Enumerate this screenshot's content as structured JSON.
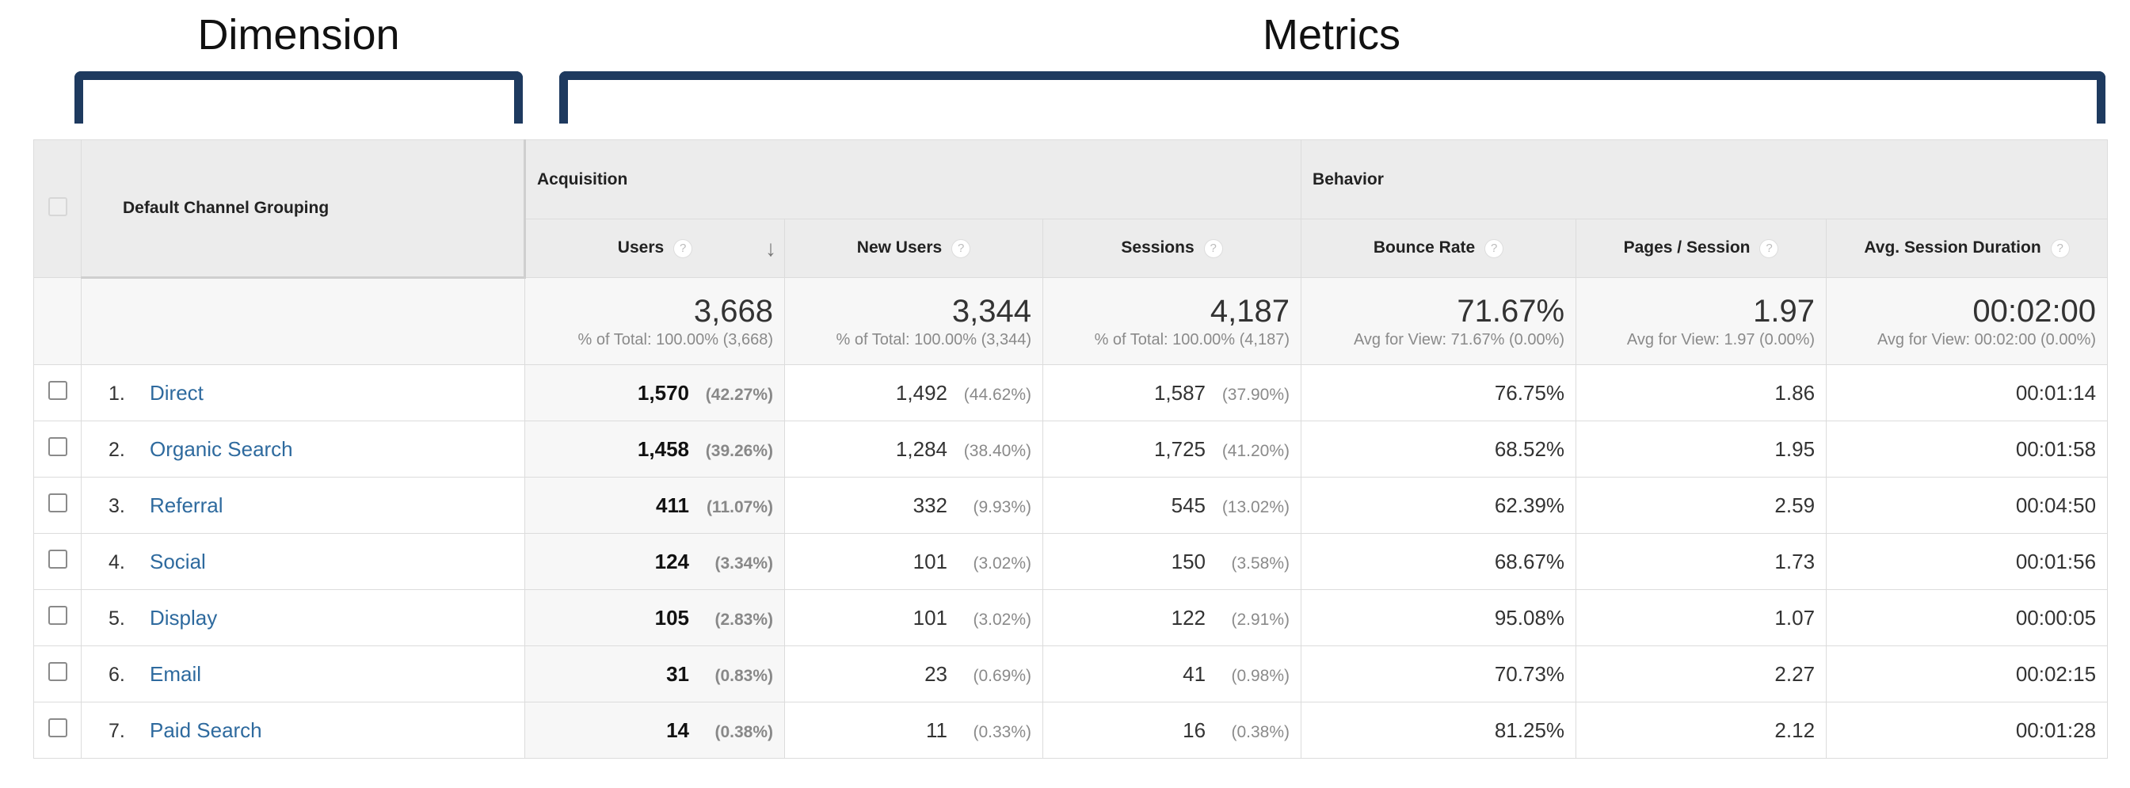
{
  "annotations": {
    "dimension_label": "Dimension",
    "metrics_label": "Metrics"
  },
  "header": {
    "dimension": "Default Channel Grouping",
    "acquisition": "Acquisition",
    "behavior": "Behavior",
    "columns": {
      "users": "Users",
      "new_users": "New Users",
      "sessions": "Sessions",
      "bounce_rate": "Bounce Rate",
      "pages_session": "Pages / Session",
      "avg_duration": "Avg. Session Duration"
    },
    "help_glyph": "?",
    "sort_glyph": "↓"
  },
  "totals": {
    "users": {
      "value": "3,668",
      "sub": "% of Total: 100.00% (3,668)"
    },
    "new_users": {
      "value": "3,344",
      "sub": "% of Total: 100.00% (3,344)"
    },
    "sessions": {
      "value": "4,187",
      "sub": "% of Total: 100.00% (4,187)"
    },
    "bounce_rate": {
      "value": "71.67%",
      "sub": "Avg for View: 71.67% (0.00%)"
    },
    "pages_session": {
      "value": "1.97",
      "sub": "Avg for View: 1.97 (0.00%)"
    },
    "avg_duration": {
      "value": "00:02:00",
      "sub": "Avg for View: 00:02:00 (0.00%)"
    }
  },
  "rows": [
    {
      "num": "1.",
      "channel": "Direct",
      "users": "1,570",
      "users_pct": "(42.27%)",
      "new_users": "1,492",
      "new_users_pct": "(44.62%)",
      "sessions": "1,587",
      "sessions_pct": "(37.90%)",
      "bounce_rate": "76.75%",
      "pages_session": "1.86",
      "avg_duration": "00:01:14"
    },
    {
      "num": "2.",
      "channel": "Organic Search",
      "users": "1,458",
      "users_pct": "(39.26%)",
      "new_users": "1,284",
      "new_users_pct": "(38.40%)",
      "sessions": "1,725",
      "sessions_pct": "(41.20%)",
      "bounce_rate": "68.52%",
      "pages_session": "1.95",
      "avg_duration": "00:01:58"
    },
    {
      "num": "3.",
      "channel": "Referral",
      "users": "411",
      "users_pct": "(11.07%)",
      "new_users": "332",
      "new_users_pct": "(9.93%)",
      "sessions": "545",
      "sessions_pct": "(13.02%)",
      "bounce_rate": "62.39%",
      "pages_session": "2.59",
      "avg_duration": "00:04:50"
    },
    {
      "num": "4.",
      "channel": "Social",
      "users": "124",
      "users_pct": "(3.34%)",
      "new_users": "101",
      "new_users_pct": "(3.02%)",
      "sessions": "150",
      "sessions_pct": "(3.58%)",
      "bounce_rate": "68.67%",
      "pages_session": "1.73",
      "avg_duration": "00:01:56"
    },
    {
      "num": "5.",
      "channel": "Display",
      "users": "105",
      "users_pct": "(2.83%)",
      "new_users": "101",
      "new_users_pct": "(3.02%)",
      "sessions": "122",
      "sessions_pct": "(2.91%)",
      "bounce_rate": "95.08%",
      "pages_session": "1.07",
      "avg_duration": "00:00:05"
    },
    {
      "num": "6.",
      "channel": "Email",
      "users": "31",
      "users_pct": "(0.83%)",
      "new_users": "23",
      "new_users_pct": "(0.69%)",
      "sessions": "41",
      "sessions_pct": "(0.98%)",
      "bounce_rate": "70.73%",
      "pages_session": "2.27",
      "avg_duration": "00:02:15"
    },
    {
      "num": "7.",
      "channel": "Paid Search",
      "users": "14",
      "users_pct": "(0.38%)",
      "new_users": "11",
      "new_users_pct": "(0.33%)",
      "sessions": "16",
      "sessions_pct": "(0.38%)",
      "bounce_rate": "81.25%",
      "pages_session": "2.12",
      "avg_duration": "00:01:28"
    }
  ],
  "colors": {
    "bracket": "#1e3a5f",
    "link": "#2e6a9e",
    "header_bg": "#ececec"
  }
}
